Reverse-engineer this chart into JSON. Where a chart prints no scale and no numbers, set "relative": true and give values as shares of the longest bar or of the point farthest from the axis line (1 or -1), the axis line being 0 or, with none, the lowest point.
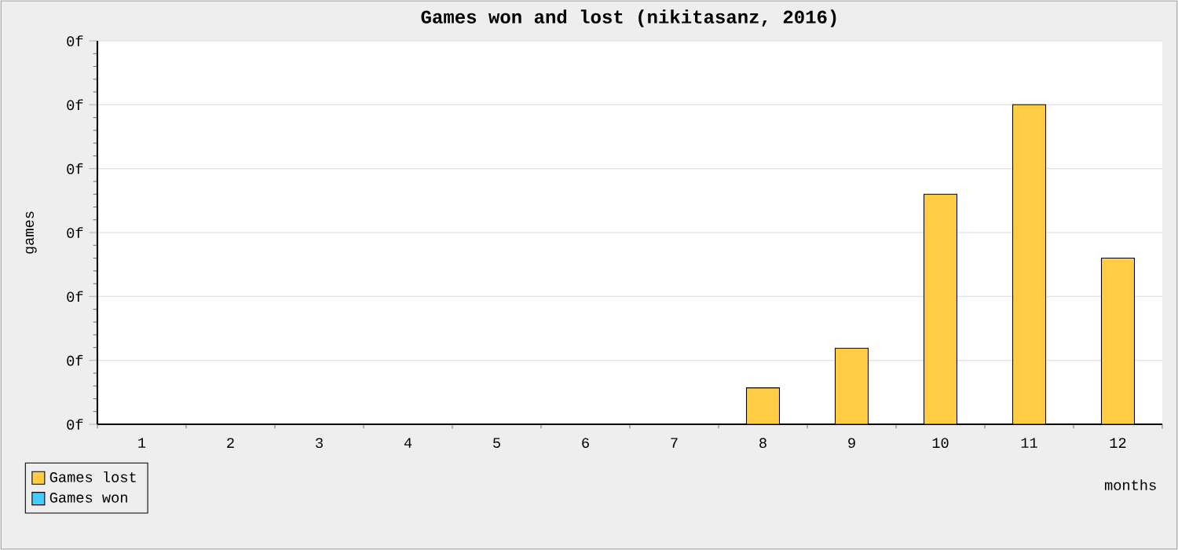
{
  "chart_data": {
    "type": "bar",
    "title": "Games won and lost (nikitasanz, 2016)",
    "xlabel": "months",
    "ylabel": "games",
    "categories": [
      "1",
      "2",
      "3",
      "4",
      "5",
      "6",
      "7",
      "8",
      "9",
      "10",
      "11",
      "12"
    ],
    "series": [
      {
        "name": "Games lost",
        "color": "#ffcc44",
        "values": [
          null,
          null,
          null,
          null,
          null,
          null,
          null,
          0.114,
          0.238,
          0.72,
          1,
          0.52
        ]
      },
      {
        "name": "Games won",
        "color": "#44ccff",
        "values": [
          null,
          null,
          null,
          null,
          null,
          null,
          null,
          null,
          null,
          null,
          null,
          null
        ]
      }
    ],
    "relative": true,
    "annotations": [
      "0f",
      "0f",
      "0f",
      "0f",
      "0f",
      "0f",
      "0f"
    ],
    "grid": "y",
    "legend": "bottom left"
  }
}
